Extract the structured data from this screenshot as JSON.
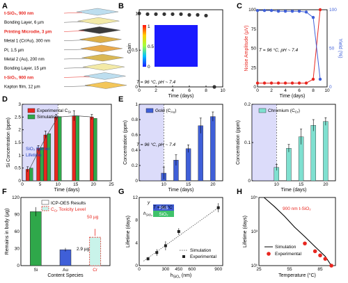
{
  "panels": {
    "A": {
      "label": "A",
      "layers": [
        {
          "text": "t-SiO₂, 900 nm",
          "color": "#e8261f",
          "fill": "#b8dcee"
        },
        {
          "text": "Bonding Layer, 6 µm",
          "color": "#000000",
          "fill": "#f3e9a0"
        },
        {
          "text": "Printing Microdie, 3 µm",
          "color": "#e8261f",
          "fill": "#2b2b2b"
        },
        {
          "text": "Metal 1 (Cr/Au), 300 nm",
          "color": "#000000",
          "fill": "#d9a83a"
        },
        {
          "text": "PI, 1.5 µm",
          "color": "#000000",
          "fill": "#e7a23c"
        },
        {
          "text": "Metal 2 (Au), 200 nm",
          "color": "#000000",
          "fill": "#d7b347"
        },
        {
          "text": "Bonding Layer, 15 µm",
          "color": "#000000",
          "fill": "#f3e9a0"
        },
        {
          "text": "t-SiO₂, 900 nm",
          "color": "#e8261f",
          "fill": "#b8dcee"
        },
        {
          "text": "Kapton film, 12 µm",
          "color": "#000000",
          "fill": "#f2c24c"
        }
      ]
    },
    "B": {
      "label": "B",
      "annotation": "T = 96 °C, pH ~ 7.4"
    },
    "C": {
      "label": "C",
      "annotation": "T = 96 °C, pH ~ 7.4"
    },
    "D": {
      "label": "D",
      "annotation_line1": "SiO₂ Barrier",
      "annotation_line2": "Lifetime"
    },
    "E": {
      "label": "E",
      "annotation": "T = 96 °C, pH ~ 7.4"
    },
    "F": {
      "label": "F",
      "callout1": "2.9 µg",
      "callout2": "50 µg"
    },
    "G": {
      "label": "G",
      "annotation": "T = 96 °C",
      "inset_top": "PBS",
      "inset_bottom": "SiO₂",
      "inset_h": "h",
      "inset_sub": "SiO₂",
      "inset_y": "y"
    },
    "H": {
      "label": "H",
      "annotation": "900 nm t-SiO₂"
    }
  },
  "chart_data": [
    {
      "id": "B",
      "type": "scatter",
      "x": [
        0,
        1,
        2,
        3,
        4,
        5,
        6,
        7,
        8,
        9
      ],
      "y": [
        1.0,
        0.99,
        0.99,
        0.99,
        0.99,
        0.99,
        0.98,
        0.98,
        0.97,
        0.0
      ],
      "xlabel": "Time (days)",
      "ylabel": "Gain",
      "xlim": [
        0,
        10
      ],
      "ylim": [
        0,
        1.05
      ],
      "xticks": [
        0,
        2,
        4,
        6,
        8,
        10
      ],
      "yticks": [
        0,
        0.5,
        1
      ],
      "colorbar_max": 1,
      "colorbar_min": 0,
      "colorbar_ticks": [
        "0",
        "0.5",
        "1"
      ]
    },
    {
      "id": "C",
      "type": "line",
      "x": [
        0,
        1,
        2,
        3,
        4,
        5,
        6,
        7,
        8,
        9
      ],
      "series": [
        {
          "name": "Noise Amplitude",
          "values": [
            5,
            5,
            5,
            5,
            5,
            5,
            5,
            5,
            10,
            100
          ],
          "color": "#e8261f",
          "axis": "left"
        },
        {
          "name": "Yield",
          "values": [
            99,
            99,
            99,
            98,
            98,
            98,
            98,
            97,
            90,
            10
          ],
          "color": "#3f5fd8",
          "axis": "right"
        }
      ],
      "xlabel": "Time (days)",
      "ylabel": "Noise Amplitude (µV)",
      "ylabel_right": "Yield (%)",
      "xlim": [
        0,
        10
      ],
      "ylim": [
        0,
        100
      ],
      "ylim_right": [
        0,
        100
      ],
      "xticks": [
        0,
        2,
        4,
        6,
        8,
        10
      ],
      "yticks": [
        0,
        25,
        50,
        75,
        100
      ],
      "yticks_right": [
        0,
        50,
        100
      ]
    },
    {
      "id": "D",
      "type": "bar",
      "x": [
        2,
        5,
        7,
        10,
        15,
        20
      ],
      "series": [
        {
          "name": "Experimental C",
          "sub": "Si",
          "values": [
            0.45,
            1.28,
            1.8,
            2.5,
            2.55,
            2.5
          ],
          "errors": [
            0.1,
            0.1,
            0.15,
            0.1,
            0.2,
            0.1
          ],
          "color": "#e8261f"
        },
        {
          "name": "Simulation",
          "values": [
            0.5,
            1.3,
            1.85,
            2.52,
            2.55,
            2.45
          ],
          "color": "#2fa84a"
        }
      ],
      "line": [
        [
          2,
          0.45
        ],
        [
          5,
          1.28
        ],
        [
          7,
          1.8
        ],
        [
          10,
          2.5
        ],
        [
          15,
          2.55
        ],
        [
          20,
          2.5
        ]
      ],
      "xlabel": "Time (days)",
      "ylabel": "Si Concentration (ppm)",
      "xlim": [
        0,
        25
      ],
      "ylim": [
        0,
        3
      ],
      "xticks": [
        0,
        5,
        10,
        15,
        20,
        25
      ],
      "yticks": [
        0,
        0.5,
        1,
        1.5,
        2,
        2.5,
        3
      ],
      "shade_until": 10
    },
    {
      "id": "E1",
      "type": "bar",
      "x": [
        10,
        12.5,
        15,
        17.5,
        20
      ],
      "series": [
        {
          "name": "Gold (C",
          "sub": "Au",
          "values": [
            0.1,
            0.27,
            0.42,
            0.72,
            0.84
          ],
          "errors": [
            0.08,
            0.07,
            0.05,
            0.1,
            0.06
          ],
          "color": "#3f5fd8"
        }
      ],
      "xlabel": "Time (days)",
      "ylabel": "Concentration (ppm)",
      "xlim": [
        5,
        22
      ],
      "ylim": [
        0,
        1
      ],
      "xticks": [
        10,
        15,
        20
      ],
      "yticks": [
        0,
        0.2,
        0.4,
        0.6,
        0.8,
        1.0
      ],
      "shade_until": 10
    },
    {
      "id": "E2",
      "type": "bar",
      "x": [
        10,
        12.5,
        15,
        17.5,
        20
      ],
      "series": [
        {
          "name": "Chromium (C",
          "sub": "Cr",
          "values": [
            0.035,
            0.085,
            0.115,
            0.145,
            0.155
          ],
          "errors": [
            0.008,
            0.01,
            0.02,
            0.015,
            0.01
          ],
          "color": "#7fe0d0"
        }
      ],
      "xlabel": "Time (days)",
      "ylabel": "Concentration (ppm)",
      "xlim": [
        5,
        22
      ],
      "ylim": [
        0,
        0.2
      ],
      "xticks": [
        10,
        15,
        20
      ],
      "yticks": [
        0,
        0.1,
        0.2
      ],
      "shade_until": 10
    },
    {
      "id": "F",
      "type": "bar",
      "categories": [
        "Si",
        "Au",
        "Cr"
      ],
      "values": [
        95,
        28,
        2.9
      ],
      "errors": [
        8,
        3,
        0.5
      ],
      "colors": [
        "#2fa84a",
        "#3f5fd8",
        "#ffffff"
      ],
      "toxicity_level": 50,
      "legend": [
        "ICP-OES Results",
        "C",
        "Toxicity Level"
      ],
      "legend_sub": "Cr",
      "xlabel": "Content Species",
      "ylabel": "Remains in body (µg)",
      "ylim": [
        0,
        120
      ],
      "yticks": [
        0,
        30,
        60,
        90,
        120
      ]
    },
    {
      "id": "G",
      "type": "scatter",
      "x": [
        100,
        200,
        300,
        450,
        900
      ],
      "y": [
        1.2,
        2.3,
        3.5,
        6,
        10.2
      ],
      "errors": [
        0.3,
        0.6,
        0.8,
        0.6,
        0.8
      ],
      "sim_line": [
        [
          50,
          0.8
        ],
        [
          900,
          10.2
        ]
      ],
      "legend": [
        "Simulation",
        "Experimental"
      ],
      "xlabel": "h",
      "xlabel_sub": "SiO₂",
      "xlabel_unit": "(nm)",
      "ylabel": "Lifetime (days)",
      "xlim": [
        0,
        950
      ],
      "ylim": [
        0,
        12
      ],
      "xticks": [
        0,
        300,
        450,
        600,
        900
      ],
      "yticks": [
        0,
        4,
        8,
        12
      ]
    },
    {
      "id": "H",
      "type": "scatter",
      "x": [
        70,
        80,
        85,
        90,
        96
      ],
      "y": [
        200,
        70,
        40,
        25,
        10
      ],
      "curve": [
        [
          30,
          100000
        ],
        [
          40,
          30000
        ],
        [
          50,
          8000
        ],
        [
          60,
          1800
        ],
        [
          70,
          500
        ],
        [
          80,
          130
        ],
        [
          90,
          35
        ],
        [
          96,
          10
        ]
      ],
      "legend": [
        "Simulation",
        "Experimental"
      ],
      "xlabel": "Temperature (°C)",
      "ylabel": "Lifetime (days)",
      "xlim": [
        25,
        100
      ],
      "log_y": true,
      "ylim_exp": [
        1,
        5
      ],
      "xticks": [
        25,
        55,
        85
      ],
      "yticks": [
        "10¹",
        "10³",
        "10⁵"
      ]
    }
  ]
}
